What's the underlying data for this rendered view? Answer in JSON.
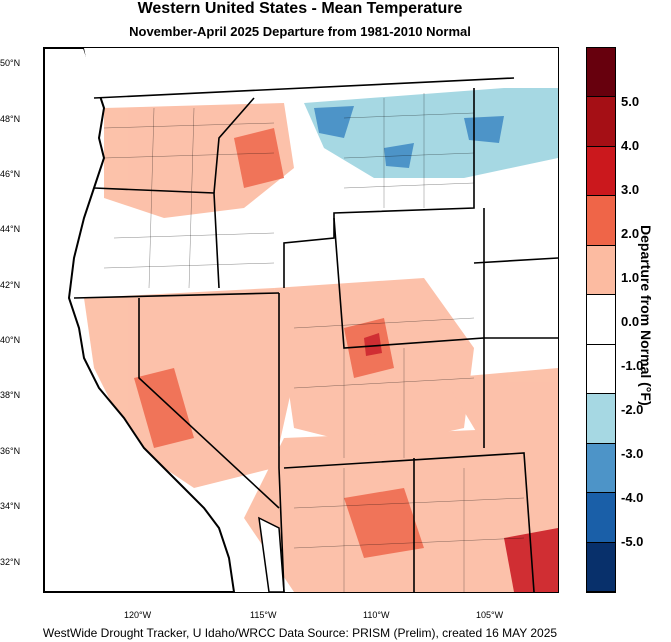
{
  "title": "Western United States - Mean Temperature",
  "subtitle": "November-April 2025  Departure from 1981-2010 Normal",
  "footer": "WestWide Drought Tracker, U Idaho/WRCC Data Source: PRISM (Prelim), created 16 MAY 2025",
  "map": {
    "lat_labels": [
      "50°N",
      "48°N",
      "46°N",
      "44°N",
      "42°N",
      "40°N",
      "38°N",
      "36°N",
      "34°N",
      "32°N"
    ],
    "lon_labels": [
      "120°W",
      "115°W",
      "110°W",
      "105°W"
    ]
  },
  "colorbar": {
    "title": "Departure from Normal (°F)",
    "tick_labels": [
      "5.0",
      "4.0",
      "3.0",
      "2.0",
      "1.0",
      "0.0",
      "-1.0",
      "-2.0",
      "-3.0",
      "-4.0",
      "-5.0"
    ],
    "colors": [
      "#67000d",
      "#a50f15",
      "#cb181d",
      "#ef6548",
      "#fcbba1",
      "#ffffff",
      "#ffffff",
      "#a6d8e3",
      "#4d94c8",
      "#1a5fa8",
      "#08306b"
    ]
  }
}
